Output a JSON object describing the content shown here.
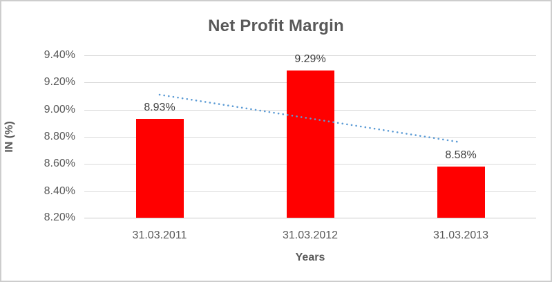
{
  "chart_data": {
    "type": "bar",
    "title": "Net Profit Margin",
    "xlabel": "Years",
    "ylabel": "IN (%)",
    "categories": [
      "31.03.2011",
      "31.03.2012",
      "31.03.2013"
    ],
    "values": [
      8.93,
      9.29,
      8.58
    ],
    "data_labels": [
      "8.93%",
      "9.29%",
      "8.58%"
    ],
    "unit": "percent",
    "ylim": [
      8.2,
      9.4
    ],
    "yticks": [
      {
        "value": 8.2,
        "label": "8.20%"
      },
      {
        "value": 8.4,
        "label": "8.40%"
      },
      {
        "value": 8.6,
        "label": "8.60%"
      },
      {
        "value": 8.8,
        "label": "8.80%"
      },
      {
        "value": 9.0,
        "label": "9.00%"
      },
      {
        "value": 9.2,
        "label": "9.20%"
      },
      {
        "value": 9.4,
        "label": "9.40%"
      }
    ],
    "grid": true,
    "legend": "none",
    "bar_color": "#FF0000",
    "trendline": {
      "type": "linear",
      "style": "dotted",
      "color": "#5B9BD5",
      "start_value": 9.11,
      "end_value": 8.76
    }
  },
  "style": {
    "background": "#FFFFFF",
    "border_color": "#CDCDCD",
    "gridline_color": "#D9D9D9",
    "axis_line_color": "#C9C9C9",
    "axis_text_color": "#595959",
    "data_label_color": "#404040",
    "title_color": "#595959"
  }
}
